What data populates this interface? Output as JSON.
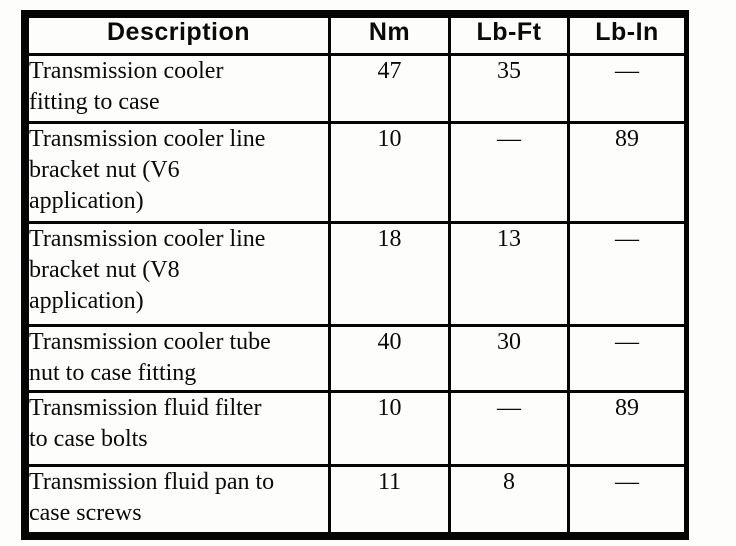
{
  "table": {
    "headers": [
      "Description",
      "Nm",
      "Lb-Ft",
      "Lb-In"
    ],
    "rows": [
      {
        "description": "Transmission cooler\nfitting to case",
        "nm": "47",
        "lb_ft": "35",
        "lb_in": "—"
      },
      {
        "description": "Transmission cooler line\nbracket nut (V6\napplication)",
        "nm": "10",
        "lb_ft": "—",
        "lb_in": "89"
      },
      {
        "description": "Transmission cooler line\nbracket nut (V8\napplication)",
        "nm": "18",
        "lb_ft": "13",
        "lb_in": "—"
      },
      {
        "description": "Transmission cooler tube\nnut to case fitting",
        "nm": "40",
        "lb_ft": "30",
        "lb_in": "—"
      },
      {
        "description": "Transmission fluid filter\nto case bolts",
        "nm": "10",
        "lb_ft": "—",
        "lb_in": "89"
      },
      {
        "description": "Transmission fluid pan to\ncase screws",
        "nm": "11",
        "lb_ft": "8",
        "lb_in": "—"
      }
    ],
    "colors": {
      "ink": "#0a0a0a",
      "border": "#050505",
      "paper": "#fdfdfc"
    }
  }
}
